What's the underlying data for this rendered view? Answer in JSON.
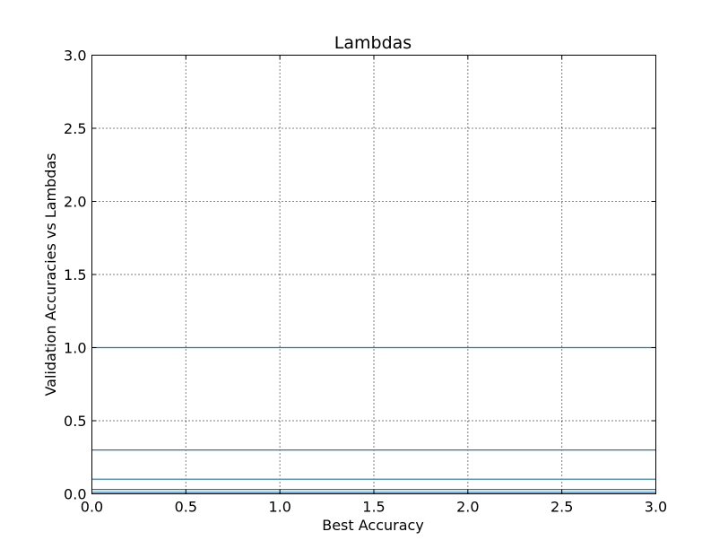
{
  "chart_data": {
    "type": "line",
    "title": "Lambdas",
    "xlabel": "Best Accuracy",
    "ylabel": "Validation Accuracies vs Lambdas",
    "xlim": [
      0.0,
      3.0
    ],
    "ylim": [
      0.0,
      3.0
    ],
    "x_ticks": [
      "0.0",
      "0.5",
      "1.0",
      "1.5",
      "2.0",
      "2.5",
      "3.0"
    ],
    "y_ticks": [
      "0.0",
      "0.5",
      "1.0",
      "1.5",
      "2.0",
      "2.5",
      "3.0"
    ],
    "grid": true,
    "line_color": "#1f77b4",
    "series": [
      {
        "x": [
          0.0,
          3.0
        ],
        "values": [
          1.0,
          1.0
        ]
      },
      {
        "x": [
          0.0,
          3.0
        ],
        "values": [
          0.3,
          0.3
        ]
      },
      {
        "x": [
          0.0,
          3.0
        ],
        "values": [
          0.1,
          0.1
        ]
      },
      {
        "x": [
          0.0,
          3.0
        ],
        "values": [
          0.03,
          0.03
        ]
      },
      {
        "x": [
          0.0,
          3.0
        ],
        "values": [
          0.01,
          0.01
        ]
      }
    ]
  }
}
